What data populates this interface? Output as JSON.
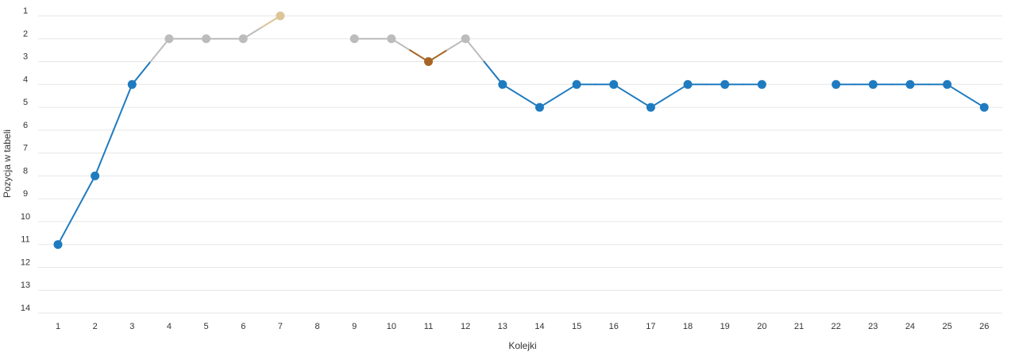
{
  "chart_data": {
    "type": "line",
    "title": "",
    "xlabel": "Kolejki",
    "ylabel": "Pozycja w tabeli",
    "x_ticks": [
      "1",
      "2",
      "3",
      "4",
      "5",
      "6",
      "7",
      "8",
      "9",
      "10",
      "11",
      "12",
      "13",
      "14",
      "15",
      "16",
      "17",
      "18",
      "19",
      "20",
      "21",
      "22",
      "23",
      "24",
      "25",
      "26"
    ],
    "y_ticks": [
      "1",
      "2",
      "3",
      "4",
      "5",
      "6",
      "7",
      "8",
      "9",
      "10",
      "11",
      "12",
      "13",
      "14"
    ],
    "ylim": [
      1,
      14
    ],
    "y_inverted": true,
    "grid": true,
    "legend": "none",
    "points": [
      {
        "x": 1,
        "y": 11
      },
      {
        "x": 2,
        "y": 8
      },
      {
        "x": 3,
        "y": 4
      },
      {
        "x": 4,
        "y": 2
      },
      {
        "x": 5,
        "y": 2
      },
      {
        "x": 6,
        "y": 2
      },
      {
        "x": 7,
        "y": 1
      },
      {
        "x": 8,
        "y": null
      },
      {
        "x": 9,
        "y": 2
      },
      {
        "x": 10,
        "y": 2
      },
      {
        "x": 11,
        "y": 3
      },
      {
        "x": 12,
        "y": 2
      },
      {
        "x": 13,
        "y": 4
      },
      {
        "x": 14,
        "y": 5
      },
      {
        "x": 15,
        "y": 4
      },
      {
        "x": 16,
        "y": 4
      },
      {
        "x": 17,
        "y": 5
      },
      {
        "x": 18,
        "y": 4
      },
      {
        "x": 19,
        "y": 4
      },
      {
        "x": 20,
        "y": 4
      },
      {
        "x": 21,
        "y": null
      },
      {
        "x": 22,
        "y": 4
      },
      {
        "x": 23,
        "y": 4
      },
      {
        "x": 24,
        "y": 4
      },
      {
        "x": 25,
        "y": 4
      },
      {
        "x": 26,
        "y": 5
      }
    ],
    "position_colors": {
      "1": "#dcc597",
      "2": "#bcbcbc",
      "3": "#a86424",
      "default": "#1f7bbf"
    },
    "grid_color": "#e6e6e6"
  }
}
